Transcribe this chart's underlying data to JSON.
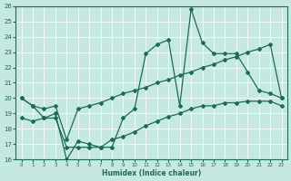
{
  "xlabel": "Humidex (Indice chaleur)",
  "xlim": [
    -0.5,
    23.5
  ],
  "ylim": [
    16,
    26
  ],
  "xticks": [
    0,
    1,
    2,
    3,
    4,
    5,
    6,
    7,
    8,
    9,
    10,
    11,
    12,
    13,
    14,
    15,
    16,
    17,
    18,
    19,
    20,
    21,
    22,
    23
  ],
  "yticks": [
    16,
    17,
    18,
    19,
    20,
    21,
    22,
    23,
    24,
    25,
    26
  ],
  "bg_color": "#c5e8e0",
  "line_color": "#1a6b5a",
  "line1_x": [
    0,
    1,
    2,
    3,
    4,
    5,
    6,
    7,
    8,
    9,
    10,
    11,
    12,
    13,
    14,
    15,
    16,
    17,
    18,
    19,
    20,
    21,
    22,
    23
  ],
  "line1_y": [
    20.0,
    19.5,
    18.7,
    18.7,
    16.8,
    16.8,
    16.8,
    16.8,
    16.8,
    18.7,
    19.3,
    22.9,
    23.5,
    23.8,
    19.5,
    25.8,
    23.6,
    22.9,
    22.9,
    22.9,
    21.7,
    20.5,
    20.3,
    20.0
  ],
  "line2_x": [
    0,
    1,
    2,
    3,
    4,
    5,
    6,
    7,
    8,
    9,
    10,
    11,
    12,
    13,
    14,
    15,
    16,
    17,
    18,
    19,
    20,
    21,
    22,
    23
  ],
  "line2_y": [
    20.0,
    19.5,
    19.3,
    19.5,
    17.3,
    19.3,
    19.5,
    19.7,
    20.0,
    20.3,
    20.5,
    20.7,
    21.0,
    21.2,
    21.5,
    21.7,
    22.0,
    22.2,
    22.5,
    22.7,
    23.0,
    23.2,
    23.5,
    20.0
  ],
  "line3_x": [
    0,
    1,
    2,
    3,
    4,
    5,
    6,
    7,
    8,
    9,
    10,
    11,
    12,
    13,
    14,
    15,
    16,
    17,
    18,
    19,
    20,
    21,
    22,
    23
  ],
  "line3_y": [
    18.7,
    18.5,
    18.7,
    19.0,
    16.0,
    17.2,
    17.0,
    16.8,
    17.3,
    17.5,
    17.8,
    18.2,
    18.5,
    18.8,
    19.0,
    19.3,
    19.5,
    19.5,
    19.7,
    19.7,
    19.8,
    19.8,
    19.8,
    19.5
  ]
}
